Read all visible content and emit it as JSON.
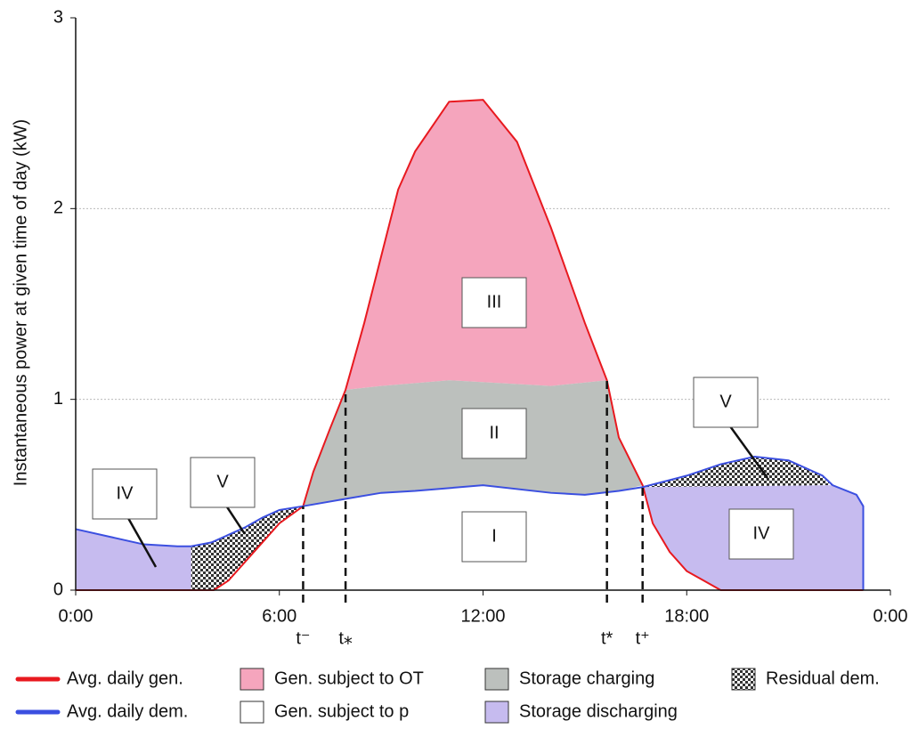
{
  "chart_data": {
    "type": "area",
    "y_label": "Instantaneous power at given time of day (kW)",
    "xlim": [
      0,
      24
    ],
    "xticks": [
      {
        "value": 0,
        "label": "0:00"
      },
      {
        "value": 6,
        "label": "6:00"
      },
      {
        "value": 12,
        "label": "12:00"
      },
      {
        "value": 18,
        "label": "18:00"
      },
      {
        "value": 24,
        "label": "0:00"
      }
    ],
    "ylim": [
      0,
      3
    ],
    "yticks": [
      0,
      1,
      2,
      3
    ],
    "grid": true,
    "series": [
      {
        "name": "Avg. daily gen.",
        "color": "#e8191f",
        "x": [
          0,
          4.07,
          4.5,
          5,
          5.5,
          6,
          6.7,
          7,
          7.5,
          7.95,
          8.5,
          9,
          9.5,
          10,
          11,
          12,
          13,
          14,
          15,
          15.65,
          16,
          16.7,
          17,
          17.5,
          18,
          18.5,
          19,
          23.2
        ],
        "values": [
          0,
          0,
          0.05,
          0.15,
          0.25,
          0.35,
          0.44,
          0.62,
          0.85,
          1.05,
          1.4,
          1.75,
          2.1,
          2.3,
          2.56,
          2.57,
          2.35,
          1.9,
          1.4,
          1.1,
          0.8,
          0.55,
          0.35,
          0.2,
          0.1,
          0.05,
          0,
          0
        ]
      },
      {
        "name": "Avg. daily dem.",
        "color": "#3b4fe0",
        "x": [
          0,
          1,
          2,
          3,
          3.4,
          4,
          5,
          5.5,
          6,
          6.7,
          8,
          9,
          10,
          12,
          14,
          15,
          16,
          16.7,
          18,
          19,
          20,
          21,
          22,
          22.3,
          23,
          23.2,
          23.2
        ],
        "values": [
          0.32,
          0.28,
          0.24,
          0.23,
          0.23,
          0.25,
          0.33,
          0.38,
          0.42,
          0.44,
          0.48,
          0.51,
          0.52,
          0.55,
          0.51,
          0.5,
          0.52,
          0.54,
          0.6,
          0.66,
          0.7,
          0.68,
          0.6,
          0.55,
          0.5,
          0.44,
          0
        ]
      }
    ],
    "areas": [
      {
        "name": "Gen. subject to OT",
        "color": "#f5a5bd",
        "regions": [
          {
            "label": "III",
            "x": [
              7.95,
              8.5,
              9,
              9.5,
              10,
              11,
              12,
              13,
              14,
              15,
              15.65,
              15.65,
              14,
              11,
              9,
              7.95
            ],
            "y": [
              1.05,
              1.4,
              1.75,
              2.1,
              2.3,
              2.56,
              2.57,
              2.35,
              1.9,
              1.4,
              1.1,
              1.1,
              1.07,
              1.1,
              1.07,
              1.05
            ]
          }
        ]
      },
      {
        "name": "Storage charging",
        "color": "#bcc0bd",
        "regions": [
          {
            "label": "II",
            "x": [
              6.7,
              7,
              7.5,
              7.95,
              9,
              11,
              14,
              15.65,
              16,
              16.7,
              16,
              15,
              14,
              12,
              10,
              9,
              8,
              6.7
            ],
            "y": [
              0.44,
              0.62,
              0.85,
              1.05,
              1.07,
              1.1,
              1.07,
              1.1,
              0.8,
              0.55,
              0.52,
              0.5,
              0.51,
              0.55,
              0.52,
              0.51,
              0.48,
              0.44
            ]
          }
        ]
      },
      {
        "name": "Residual dem.",
        "color": "#444444",
        "pattern": "checker",
        "regions": [
          {
            "label": "V",
            "x": [
              3.4,
              3.4,
              4,
              5,
              5.5,
              6,
              6.7,
              6,
              5.5,
              5,
              4.5,
              4.07
            ],
            "y": [
              0,
              0.23,
              0.25,
              0.33,
              0.38,
              0.42,
              0.44,
              0.35,
              0.25,
              0.15,
              0.05,
              0
            ]
          },
          {
            "label": "V",
            "x": [
              16.7,
              18,
              19,
              20,
              21,
              22,
              22.3
            ],
            "y": [
              0.54,
              0.6,
              0.66,
              0.7,
              0.68,
              0.6,
              0.55
            ]
          }
        ]
      },
      {
        "name": "Gen. subject to p",
        "color": "#ffffff",
        "regions": [
          {
            "label": "I",
            "x": [
              6.7,
              8,
              9,
              10,
              12,
              14,
              15,
              16,
              16.7,
              16.7,
              6.7
            ],
            "y": [
              0.44,
              0.48,
              0.51,
              0.52,
              0.55,
              0.51,
              0.5,
              0.52,
              0.54,
              0,
              0
            ]
          }
        ]
      },
      {
        "name": "Storage discharging",
        "color": "#c6bbef",
        "regions": [
          {
            "label": "IV",
            "x": [
              0,
              0,
              1,
              2,
              3,
              3.4,
              3.4
            ],
            "y": [
              0,
              0.32,
              0.28,
              0.24,
              0.23,
              0.23,
              0
            ]
          },
          {
            "label": "IV",
            "x": [
              16.7,
              22.3,
              23,
              23.2,
              23.2,
              19,
              18.5,
              18,
              17.5,
              17
            ],
            "y": [
              0.54,
              0.55,
              0.5,
              0.44,
              0,
              0,
              0.05,
              0.1,
              0.2,
              0.35
            ]
          }
        ]
      }
    ],
    "markers": [
      {
        "label": "t⁻",
        "x": 6.7,
        "y": 0.44
      },
      {
        "label": "t⁎",
        "x": 7.95,
        "y": 1.05
      },
      {
        "label": "t*",
        "x": 15.65,
        "y": 1.1
      },
      {
        "label": "t⁺",
        "x": 16.7,
        "y": 0.55
      }
    ]
  }
}
